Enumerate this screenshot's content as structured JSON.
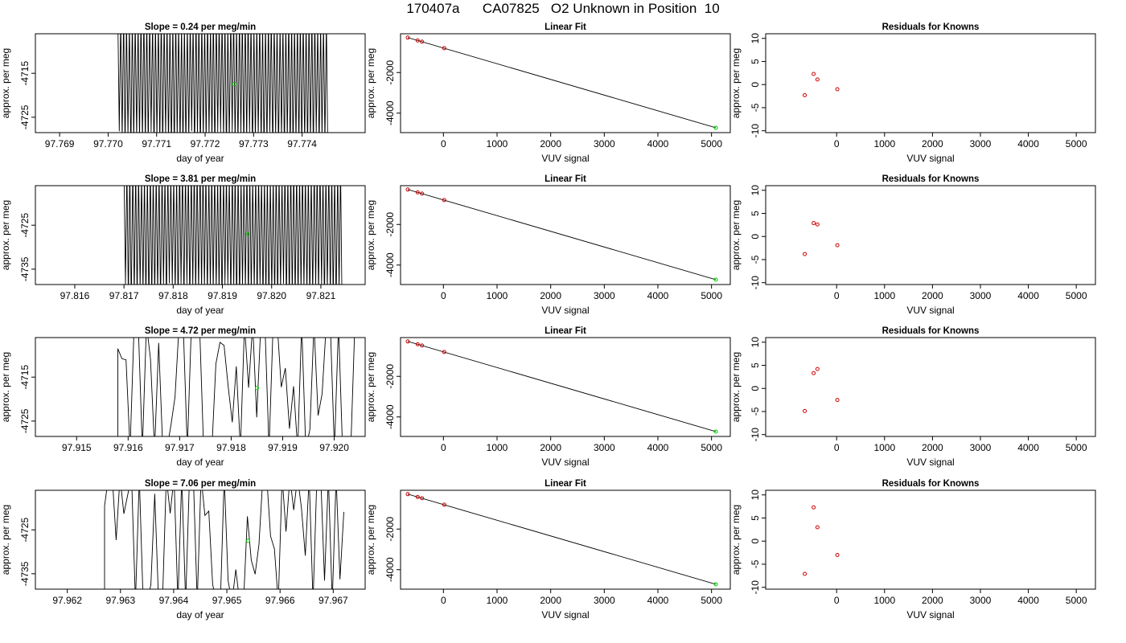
{
  "figure": {
    "title": "170407a      CA07825   O2 Unknown in Position  10"
  },
  "colors": {
    "trace": "#000000",
    "point_ref": "#00cc00",
    "point_known": "#cc0000",
    "frame": "#000000"
  },
  "chart_data": [
    {
      "row": 0,
      "col": 0,
      "type": "line",
      "title": "Slope =  0.24  per meg/min",
      "xlabel": "day of year",
      "ylabel": "approx. per meg",
      "xlim": [
        97.7685,
        97.7753
      ],
      "ylim": [
        -4728.5,
        -4706.0
      ],
      "xticks": [
        97.769,
        97.77,
        97.771,
        97.772,
        97.773,
        97.774
      ],
      "xtick_labels": [
        "97.769",
        "97.770",
        "97.771",
        "97.772",
        "97.773",
        "97.774"
      ],
      "yticks": [
        -4715,
        -4725
      ],
      "ytick_labels": [
        "-4715",
        "-4725"
      ],
      "series": [
        {
          "style": "oscillating",
          "x_start": 97.7702,
          "x_end": 97.7745,
          "cycles": 72,
          "y_high": -4706.0,
          "y_low": -4728.5,
          "jitter": 1.5
        }
      ],
      "marker": {
        "x": 97.7726,
        "y": -4717.5
      }
    },
    {
      "row": 0,
      "col": 1,
      "type": "scatter",
      "title": "Linear Fit",
      "xlabel": "VUV signal",
      "ylabel": "approx. per meg",
      "xlim": [
        -800,
        5350
      ],
      "ylim": [
        -4960,
        -90
      ],
      "xticks": [
        0,
        1000,
        2000,
        3000,
        4000,
        5000
      ],
      "xtick_labels": [
        "0",
        "1000",
        "2000",
        "3000",
        "4000",
        "5000"
      ],
      "yticks": [
        -2000,
        -4000
      ],
      "ytick_labels": [
        "-2000",
        "-4000"
      ],
      "fit_line": {
        "x": [
          -665,
          5080
        ],
        "y": [
          -280,
          -4720
        ]
      },
      "points_known": {
        "x": [
          -665,
          -480,
          -400,
          15
        ],
        "y": [
          -280,
          -420,
          -480,
          -800
        ]
      },
      "point_unknown": {
        "x": 5080,
        "y": -4720
      }
    },
    {
      "row": 0,
      "col": 2,
      "type": "scatter",
      "title": "Residuals for Knowns",
      "xlabel": "VUV signal",
      "ylabel": "approx. per meg",
      "xlim": [
        -1480,
        5400
      ],
      "ylim": [
        -10.4,
        11.0
      ],
      "xticks": [
        0,
        1000,
        2000,
        3000,
        4000,
        5000
      ],
      "xtick_labels": [
        "0",
        "1000",
        "2000",
        "3000",
        "4000",
        "5000"
      ],
      "yticks": [
        10,
        5,
        0,
        -5,
        -10
      ],
      "ytick_labels": [
        "10",
        "5",
        "0",
        "-5",
        "-10"
      ],
      "points_known": {
        "x": [
          -665,
          -480,
          -400,
          15
        ],
        "y": [
          -2.3,
          2.3,
          1.1,
          -1.0
        ]
      }
    },
    {
      "row": 1,
      "col": 0,
      "type": "line",
      "title": "Slope =  3.81  per meg/min",
      "xlabel": "day of year",
      "ylabel": "approx. per meg",
      "xlim": [
        97.8152,
        97.8219
      ],
      "ylim": [
        -4738.5,
        -4716.0
      ],
      "xticks": [
        97.816,
        97.817,
        97.818,
        97.819,
        97.82,
        97.821
      ],
      "xtick_labels": [
        "97.816",
        "97.817",
        "97.818",
        "97.819",
        "97.820",
        "97.821"
      ],
      "yticks": [
        -4725,
        -4735
      ],
      "ytick_labels": [
        "-4725",
        "-4735"
      ],
      "series": [
        {
          "style": "oscillating",
          "x_start": 97.817,
          "x_end": 97.8214,
          "cycles": 74,
          "y_high": -4716.0,
          "y_low": -4738.5,
          "jitter": 1.5
        }
      ],
      "marker": {
        "x": 97.8195,
        "y": -4727.0
      }
    },
    {
      "row": 1,
      "col": 1,
      "type": "scatter",
      "title": "Linear Fit",
      "xlabel": "VUV signal",
      "ylabel": "approx. per meg",
      "xlim": [
        -800,
        5350
      ],
      "ylim": [
        -4960,
        -90
      ],
      "xticks": [
        0,
        1000,
        2000,
        3000,
        4000,
        5000
      ],
      "xtick_labels": [
        "0",
        "1000",
        "2000",
        "3000",
        "4000",
        "5000"
      ],
      "yticks": [
        -2000,
        -4000
      ],
      "ytick_labels": [
        "-2000",
        "-4000"
      ],
      "fit_line": {
        "x": [
          -665,
          5080
        ],
        "y": [
          -280,
          -4720
        ]
      },
      "points_known": {
        "x": [
          -665,
          -480,
          -400,
          15
        ],
        "y": [
          -280,
          -420,
          -480,
          -800
        ]
      },
      "point_unknown": {
        "x": 5080,
        "y": -4720
      }
    },
    {
      "row": 1,
      "col": 2,
      "type": "scatter",
      "title": "Residuals for Knowns",
      "xlabel": "VUV signal",
      "ylabel": "approx. per meg",
      "xlim": [
        -1480,
        5400
      ],
      "ylim": [
        -10.4,
        11.0
      ],
      "xticks": [
        0,
        1000,
        2000,
        3000,
        4000,
        5000
      ],
      "xtick_labels": [
        "0",
        "1000",
        "2000",
        "3000",
        "4000",
        "5000"
      ],
      "yticks": [
        10,
        5,
        0,
        -5,
        -10
      ],
      "ytick_labels": [
        "10",
        "5",
        "0",
        "-5",
        "-10"
      ],
      "points_known": {
        "x": [
          -665,
          -480,
          -400,
          15
        ],
        "y": [
          -3.8,
          2.9,
          2.6,
          -1.9
        ]
      }
    },
    {
      "row": 2,
      "col": 0,
      "type": "line",
      "title": "Slope =  4.72  per meg/min",
      "xlabel": "day of year",
      "ylabel": "approx. per meg",
      "xlim": [
        97.9142,
        97.9206
      ],
      "ylim": [
        -4728.5,
        -4706.0
      ],
      "xticks": [
        97.915,
        97.916,
        97.917,
        97.918,
        97.919,
        97.92
      ],
      "xtick_labels": [
        "97.915",
        "97.916",
        "97.917",
        "97.918",
        "97.919",
        "97.920"
      ],
      "yticks": [
        -4715,
        -4725
      ],
      "ytick_labels": [
        "-4715",
        "-4725"
      ],
      "series": [
        {
          "style": "sparse",
          "x_start": 97.9158,
          "x_end": 97.9204,
          "segments": 58,
          "y_high": -4706.0,
          "y_low": -4728.5,
          "baseline": {
            "x_start": 97.9142,
            "x_end": 97.9158
          }
        }
      ],
      "marker": {
        "x": 97.9185,
        "y": -4717.5
      }
    },
    {
      "row": 2,
      "col": 1,
      "type": "scatter",
      "title": "Linear Fit",
      "xlabel": "VUV signal",
      "ylabel": "approx. per meg",
      "xlim": [
        -800,
        5350
      ],
      "ylim": [
        -4960,
        -90
      ],
      "xticks": [
        0,
        1000,
        2000,
        3000,
        4000,
        5000
      ],
      "xtick_labels": [
        "0",
        "1000",
        "2000",
        "3000",
        "4000",
        "5000"
      ],
      "yticks": [
        -2000,
        -4000
      ],
      "ytick_labels": [
        "-2000",
        "-4000"
      ],
      "fit_line": {
        "x": [
          -665,
          5080
        ],
        "y": [
          -280,
          -4720
        ]
      },
      "points_known": {
        "x": [
          -665,
          -480,
          -400,
          15
        ],
        "y": [
          -280,
          -420,
          -480,
          -800
        ]
      },
      "point_unknown": {
        "x": 5080,
        "y": -4720
      }
    },
    {
      "row": 2,
      "col": 2,
      "type": "scatter",
      "title": "Residuals for Knowns",
      "xlabel": "VUV signal",
      "ylabel": "approx. per meg",
      "xlim": [
        -1480,
        5400
      ],
      "ylim": [
        -10.4,
        11.0
      ],
      "xticks": [
        0,
        1000,
        2000,
        3000,
        4000,
        5000
      ],
      "xtick_labels": [
        "0",
        "1000",
        "2000",
        "3000",
        "4000",
        "5000"
      ],
      "yticks": [
        10,
        5,
        0,
        -5,
        -10
      ],
      "ytick_labels": [
        "10",
        "5",
        "0",
        "-5",
        "-10"
      ],
      "points_known": {
        "x": [
          -665,
          -480,
          -400,
          15
        ],
        "y": [
          -4.9,
          3.3,
          4.2,
          -2.5
        ]
      }
    },
    {
      "row": 3,
      "col": 0,
      "type": "line",
      "title": "Slope =  7.06  per meg/min",
      "xlabel": "day of year",
      "ylabel": "approx. per meg",
      "xlim": [
        97.9614,
        97.9676
      ],
      "ylim": [
        -4738.5,
        -4716.0
      ],
      "xticks": [
        97.962,
        97.963,
        97.964,
        97.965,
        97.966,
        97.967
      ],
      "xtick_labels": [
        "97.962",
        "97.963",
        "97.964",
        "97.965",
        "97.966",
        "97.967"
      ],
      "yticks": [
        -4725,
        -4735
      ],
      "ytick_labels": [
        "-4725",
        "-4735"
      ],
      "series": [
        {
          "style": "sparse",
          "x_start": 97.9627,
          "x_end": 97.9672,
          "segments": 62,
          "y_high": -4716.0,
          "y_low": -4738.5,
          "baseline": {
            "x_start": 97.9614,
            "x_end": 97.9627
          }
        }
      ],
      "marker": {
        "x": 97.9654,
        "y": -4727.5
      }
    },
    {
      "row": 3,
      "col": 1,
      "type": "scatter",
      "title": "Linear Fit",
      "xlabel": "VUV signal",
      "ylabel": "approx. per meg",
      "xlim": [
        -800,
        5350
      ],
      "ylim": [
        -4960,
        -90
      ],
      "xticks": [
        0,
        1000,
        2000,
        3000,
        4000,
        5000
      ],
      "xtick_labels": [
        "0",
        "1000",
        "2000",
        "3000",
        "4000",
        "5000"
      ],
      "yticks": [
        -2000,
        -4000
      ],
      "ytick_labels": [
        "-2000",
        "-4000"
      ],
      "fit_line": {
        "x": [
          -665,
          5080
        ],
        "y": [
          -280,
          -4720
        ]
      },
      "points_known": {
        "x": [
          -665,
          -480,
          -400,
          15
        ],
        "y": [
          -280,
          -420,
          -480,
          -800
        ]
      },
      "point_unknown": {
        "x": 5080,
        "y": -4720
      }
    },
    {
      "row": 3,
      "col": 2,
      "type": "scatter",
      "title": "Residuals for Knowns",
      "xlabel": "VUV signal",
      "ylabel": "approx. per meg",
      "xlim": [
        -1480,
        5400
      ],
      "ylim": [
        -10.4,
        11.0
      ],
      "xticks": [
        0,
        1000,
        2000,
        3000,
        4000,
        5000
      ],
      "xtick_labels": [
        "0",
        "1000",
        "2000",
        "3000",
        "4000",
        "5000"
      ],
      "yticks": [
        10,
        5,
        0,
        -5,
        -10
      ],
      "ytick_labels": [
        "10",
        "5",
        "0",
        "-5",
        "-10"
      ],
      "points_known": {
        "x": [
          -665,
          -480,
          -400,
          15
        ],
        "y": [
          -7.1,
          7.3,
          3.0,
          -3.0
        ]
      }
    }
  ]
}
